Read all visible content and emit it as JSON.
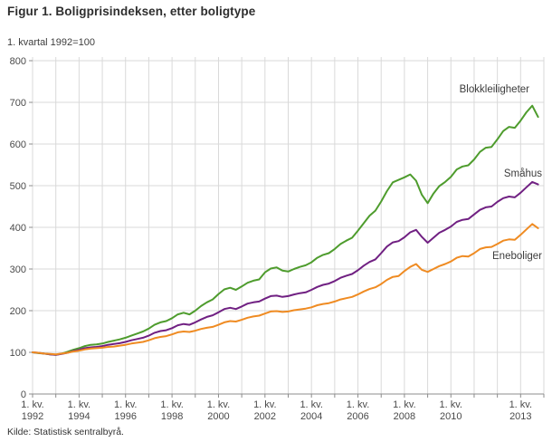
{
  "page": {
    "source": "Kilde: Statistisk sentralbyrå."
  },
  "chart_data": {
    "type": "line",
    "title": "Figur 1. Boligprisindeksen, etter boligtype",
    "subtitle": "1. kvartal 1992=100",
    "x_unit": "quarter",
    "x_start_year": 1992,
    "x_end_year": 2014,
    "points_per_year": 4,
    "ylim": [
      0,
      800
    ],
    "y_ticks": [
      0,
      100,
      200,
      300,
      400,
      500,
      600,
      700,
      800
    ],
    "x_tick_prefix": "1. kv.",
    "x_tick_years": [
      1992,
      1994,
      1996,
      1998,
      2000,
      2002,
      2004,
      2006,
      2008,
      2010,
      2013
    ],
    "grid": true,
    "legend_position": "inline-right",
    "colors": {
      "grid": "#d9d9d9",
      "axis": "#8c8c8c",
      "text": "#4a4a4a",
      "blokkleiligheter": "#4e9c2d",
      "smahus": "#702082",
      "eneboliger": "#ef8b22"
    },
    "series": [
      {
        "id": "blokkleiligheter",
        "name": "Blokkleiligheter",
        "color": "#4e9c2d",
        "values": [
          100,
          98,
          97,
          95,
          94,
          97,
          101,
          106,
          110,
          115,
          118,
          119,
          121,
          125,
          128,
          131,
          135,
          140,
          145,
          150,
          157,
          166,
          172,
          175,
          182,
          191,
          195,
          191,
          200,
          211,
          220,
          227,
          240,
          251,
          255,
          250,
          258,
          267,
          272,
          275,
          292,
          301,
          304,
          296,
          294,
          300,
          305,
          309,
          316,
          327,
          334,
          338,
          348,
          360,
          368,
          375,
          392,
          410,
          428,
          440,
          462,
          487,
          508,
          514,
          520,
          527,
          512,
          478,
          458,
          481,
          499,
          509,
          521,
          539,
          546,
          549,
          563,
          581,
          591,
          593,
          611,
          631,
          641,
          639,
          656,
          676,
          692,
          665
        ]
      },
      {
        "id": "smahus",
        "name": "Småhus",
        "color": "#702082",
        "values": [
          100,
          99,
          97,
          95,
          94,
          96,
          99,
          103,
          106,
          110,
          112,
          113,
          115,
          118,
          120,
          122,
          125,
          129,
          132,
          135,
          140,
          147,
          151,
          153,
          158,
          165,
          168,
          166,
          172,
          179,
          185,
          189,
          196,
          204,
          207,
          204,
          210,
          217,
          220,
          222,
          229,
          235,
          236,
          233,
          235,
          239,
          242,
          244,
          250,
          257,
          262,
          265,
          271,
          279,
          284,
          288,
          297,
          308,
          317,
          323,
          338,
          354,
          364,
          367,
          376,
          388,
          394,
          377,
          363,
          375,
          387,
          394,
          402,
          413,
          418,
          420,
          431,
          442,
          448,
          450,
          461,
          470,
          474,
          472,
          483,
          496,
          509,
          503
        ]
      },
      {
        "id": "eneboliger",
        "name": "Eneboliger",
        "color": "#ef8b22",
        "values": [
          100,
          99,
          97,
          96,
          95,
          97,
          99,
          102,
          104,
          107,
          109,
          110,
          111,
          113,
          114,
          116,
          118,
          121,
          123,
          125,
          129,
          134,
          137,
          139,
          143,
          148,
          150,
          149,
          152,
          156,
          159,
          161,
          166,
          172,
          175,
          174,
          178,
          183,
          186,
          188,
          193,
          198,
          199,
          197,
          198,
          201,
          203,
          205,
          208,
          213,
          216,
          218,
          222,
          227,
          230,
          233,
          239,
          246,
          252,
          256,
          264,
          274,
          281,
          283,
          295,
          305,
          312,
          298,
          293,
          300,
          307,
          312,
          318,
          327,
          331,
          330,
          338,
          348,
          352,
          353,
          360,
          368,
          371,
          370,
          382,
          395,
          408,
          398
        ]
      }
    ]
  }
}
